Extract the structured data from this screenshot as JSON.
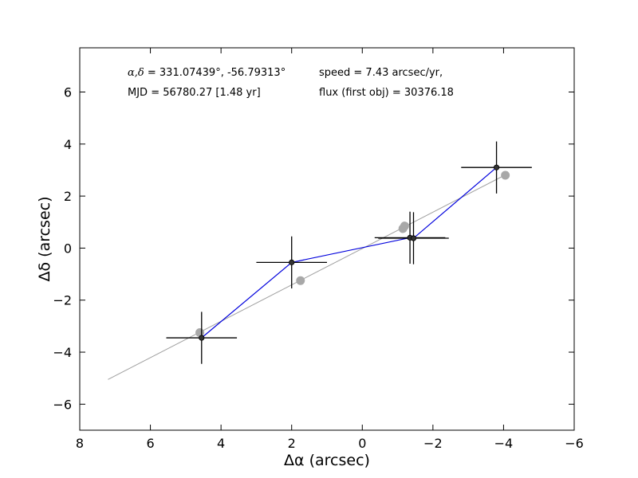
{
  "chart_data": {
    "type": "scatter",
    "title": "",
    "xlabel": "Δα (arcsec)",
    "ylabel": "Δδ (arcsec)",
    "xlim": [
      8,
      -6
    ],
    "ylim": [
      -7,
      7.7
    ],
    "xticks": [
      8,
      6,
      4,
      2,
      0,
      -2,
      -4,
      -6
    ],
    "xtick_labels": [
      "8",
      "6",
      "4",
      "2",
      "0",
      "−2",
      "−4",
      "−6"
    ],
    "yticks": [
      -6,
      -4,
      -2,
      0,
      2,
      4,
      6
    ],
    "ytick_labels": [
      "−6",
      "−4",
      "−2",
      "0",
      "2",
      "4",
      "6"
    ],
    "grid": false,
    "annotations": {
      "coord_symbol": "α,δ",
      "coord_text": " = 331.07439°, -56.79313°",
      "mjd": "MJD = 56780.27 [1.48 yr]",
      "speed": "speed = 7.43 arcsec/yr,",
      "flux": "flux (first obj) = 30376.18"
    },
    "fit_line": {
      "name": "proper motion fit",
      "color": "#a0a0a0",
      "x": [
        7.2,
        -4.1
      ],
      "y": [
        -5.05,
        2.85
      ]
    },
    "series": [
      {
        "name": "model positions",
        "color": "#a8a8a8",
        "x": [
          4.6,
          1.75,
          -1.15,
          -1.2,
          -4.05
        ],
        "y": [
          -3.25,
          -1.25,
          0.75,
          0.85,
          2.8
        ]
      },
      {
        "name": "measured positions",
        "color": "#0000dd",
        "marker_color": "#333333",
        "x": [
          4.55,
          2.0,
          -1.35,
          -1.45,
          -3.8
        ],
        "y": [
          -3.45,
          -0.55,
          0.4,
          0.38,
          3.1
        ],
        "xerr": [
          1.0,
          1.0,
          1.0,
          1.0,
          1.0
        ],
        "yerr": [
          1.0,
          1.0,
          1.0,
          1.0,
          1.0
        ]
      }
    ]
  }
}
